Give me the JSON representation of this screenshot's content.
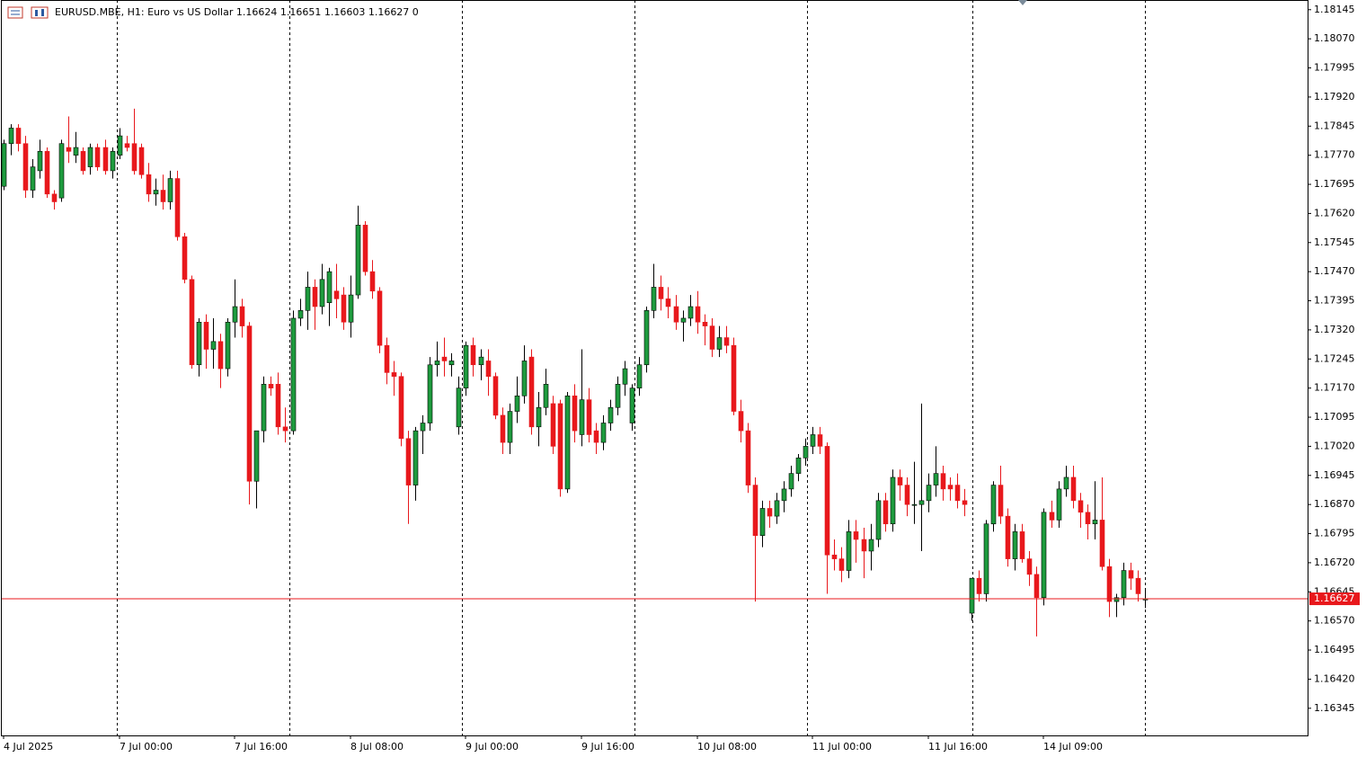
{
  "chart_data": {
    "type": "candlestick",
    "title": "EURUSD.MBE, H1:  Euro vs US Dollar  1.16624 1.16651 1.16603 1.16627  0",
    "up_color": "#1e9b3e",
    "down_color": "#e8181c",
    "price_line_color": "#e8181c",
    "current_price": 1.16627,
    "ylim": [
      1.16275,
      1.1817
    ],
    "yticks": [
      1.18145,
      {
        "value": 1.1807,
        "label": "1.18070"
      },
      1.17995,
      {
        "value": 1.1792,
        "label": "1.17920"
      },
      1.17845,
      {
        "value": 1.1777,
        "label": "1.17770"
      },
      1.17695,
      {
        "value": 1.1762,
        "label": "1.17620"
      },
      1.17545,
      {
        "value": 1.1747,
        "label": "1.17470"
      },
      1.17395,
      {
        "value": 1.1732,
        "label": "1.17320"
      },
      1.17245,
      {
        "value": 1.1717,
        "label": "1.17170"
      },
      1.17095,
      {
        "value": 1.1702,
        "label": "1.17020"
      },
      1.16945,
      {
        "value": 1.1687,
        "label": "1.16870"
      },
      1.16795,
      {
        "value": 1.1672,
        "label": "1.16720"
      },
      1.16645,
      {
        "value": 1.1657,
        "label": "1.16570"
      },
      1.16495,
      {
        "value": 1.1642,
        "label": "1.16420"
      },
      1.16345
    ],
    "categories": [
      "4 Jul 2025",
      null,
      null,
      null,
      null,
      null,
      null,
      null,
      null,
      null,
      null,
      null,
      null,
      null,
      null,
      null,
      "7 Jul 00:00",
      null,
      null,
      null,
      null,
      null,
      null,
      null,
      null,
      null,
      null,
      null,
      null,
      null,
      null,
      null,
      "7 Jul 16:00",
      null,
      null,
      null,
      null,
      null,
      null,
      null,
      null,
      null,
      null,
      null,
      null,
      null,
      null,
      null,
      "8 Jul 08:00",
      null,
      null,
      null,
      null,
      null,
      null,
      null,
      null,
      null,
      null,
      null,
      null,
      null,
      null,
      null,
      "9 Jul 00:00",
      null,
      null,
      null,
      null,
      null,
      null,
      null,
      null,
      null,
      null,
      null,
      null,
      null,
      null,
      null,
      "9 Jul 16:00",
      null,
      null,
      null,
      null,
      null,
      null,
      null,
      null,
      null,
      null,
      null,
      null,
      null,
      null,
      null,
      "10 Jul 08:00",
      null,
      null,
      null,
      null,
      null,
      null,
      null,
      null,
      null,
      null,
      null,
      null,
      null,
      null,
      null,
      "11 Jul 00:00",
      null,
      null,
      null,
      null,
      null,
      null,
      null,
      null,
      null,
      null,
      null,
      null,
      null,
      null,
      null,
      "11 Jul 16:00",
      null,
      null,
      null,
      null,
      null,
      null,
      null,
      null,
      null,
      null,
      null,
      null,
      null,
      null,
      null,
      "14 Jul 09:00",
      null,
      null,
      null,
      null,
      null,
      null,
      null,
      null,
      null,
      null,
      null,
      null,
      null,
      null
    ],
    "ohlc": [
      [
        1.1769,
        1.1781,
        1.1768,
        1.178
      ],
      [
        1.178,
        1.1785,
        1.1777,
        1.1784
      ],
      [
        1.1784,
        1.1785,
        1.1778,
        1.178
      ],
      [
        1.178,
        1.1782,
        1.1766,
        1.1768
      ],
      [
        1.1768,
        1.1776,
        1.1766,
        1.1774
      ],
      [
        1.1773,
        1.1781,
        1.1771,
        1.1778
      ],
      [
        1.1778,
        1.1779,
        1.1766,
        1.1767
      ],
      [
        1.1767,
        1.1768,
        1.1763,
        1.1765
      ],
      [
        1.1766,
        1.1781,
        1.1765,
        1.178
      ],
      [
        1.1779,
        1.1787,
        1.1775,
        1.1778
      ],
      [
        1.1777,
        1.1783,
        1.1775,
        1.1779
      ],
      [
        1.1778,
        1.1779,
        1.1772,
        1.1773
      ],
      [
        1.1774,
        1.178,
        1.1772,
        1.1779
      ],
      [
        1.1779,
        1.178,
        1.1773,
        1.1774
      ],
      [
        1.1779,
        1.1781,
        1.1772,
        1.1773
      ],
      [
        1.1773,
        1.1779,
        1.1771,
        1.1778
      ],
      [
        1.1777,
        1.1784,
        1.1776,
        1.1782
      ],
      [
        1.178,
        1.1782,
        1.1778,
        1.1779
      ],
      [
        1.178,
        1.1789,
        1.1772,
        1.1773
      ],
      [
        1.1779,
        1.178,
        1.1771,
        1.1772
      ],
      [
        1.1772,
        1.1775,
        1.1765,
        1.1767
      ],
      [
        1.1767,
        1.1771,
        1.1764,
        1.1768
      ],
      [
        1.1768,
        1.1772,
        1.1763,
        1.1765
      ],
      [
        1.1765,
        1.1773,
        1.1763,
        1.1771
      ],
      [
        1.1771,
        1.1773,
        1.1755,
        1.1756
      ],
      [
        1.1756,
        1.1757,
        1.1744,
        1.1745
      ],
      [
        1.1745,
        1.1746,
        1.1722,
        1.1723
      ],
      [
        1.1723,
        1.1735,
        1.172,
        1.1734
      ],
      [
        1.1734,
        1.1736,
        1.1722,
        1.1727
      ],
      [
        1.1727,
        1.1735,
        1.1722,
        1.1729
      ],
      [
        1.1729,
        1.1731,
        1.1717,
        1.1722
      ],
      [
        1.1722,
        1.1735,
        1.172,
        1.1734
      ],
      [
        1.1734,
        1.1745,
        1.173,
        1.1738
      ],
      [
        1.1738,
        1.174,
        1.173,
        1.1733
      ],
      [
        1.1733,
        1.1734,
        1.1687,
        1.1693
      ],
      [
        1.1693,
        1.1706,
        1.1686,
        1.1706
      ],
      [
        1.1706,
        1.172,
        1.1703,
        1.1718
      ],
      [
        1.1718,
        1.172,
        1.1715,
        1.1717
      ],
      [
        1.1718,
        1.1721,
        1.1705,
        1.1707
      ],
      [
        1.1707,
        1.1712,
        1.1703,
        1.1706
      ],
      [
        1.1706,
        1.1737,
        1.1705,
        1.1735
      ],
      [
        1.1735,
        1.174,
        1.1733,
        1.1737
      ],
      [
        1.1737,
        1.1747,
        1.1732,
        1.1743
      ],
      [
        1.1743,
        1.1745,
        1.1732,
        1.1738
      ],
      [
        1.1738,
        1.1749,
        1.1736,
        1.1745
      ],
      [
        1.1739,
        1.1748,
        1.1733,
        1.1747
      ],
      [
        1.1742,
        1.1749,
        1.1735,
        1.174
      ],
      [
        1.1741,
        1.1743,
        1.1732,
        1.1734
      ],
      [
        1.1734,
        1.1746,
        1.173,
        1.1741
      ],
      [
        1.1741,
        1.1764,
        1.174,
        1.1759
      ],
      [
        1.1759,
        1.176,
        1.1746,
        1.1747
      ],
      [
        1.1747,
        1.175,
        1.174,
        1.1742
      ],
      [
        1.1742,
        1.1743,
        1.1726,
        1.1728
      ],
      [
        1.1728,
        1.173,
        1.1718,
        1.1721
      ],
      [
        1.1721,
        1.1724,
        1.1715,
        1.172
      ],
      [
        1.172,
        1.1721,
        1.1702,
        1.1704
      ],
      [
        1.1704,
        1.1706,
        1.1682,
        1.1692
      ],
      [
        1.1692,
        1.1707,
        1.1688,
        1.1706
      ],
      [
        1.1706,
        1.171,
        1.17,
        1.1708
      ],
      [
        1.1708,
        1.1725,
        1.1706,
        1.1723
      ],
      [
        1.1723,
        1.1729,
        1.172,
        1.1724
      ],
      [
        1.1725,
        1.173,
        1.172,
        1.1724
      ],
      [
        1.1723,
        1.1726,
        1.172,
        1.1724
      ],
      [
        1.1707,
        1.172,
        1.1705,
        1.1717
      ],
      [
        1.1717,
        1.1729,
        1.1715,
        1.1728
      ],
      [
        1.1728,
        1.173,
        1.172,
        1.1723
      ],
      [
        1.1723,
        1.1727,
        1.1719,
        1.1725
      ],
      [
        1.1724,
        1.1727,
        1.1715,
        1.172
      ],
      [
        1.172,
        1.1721,
        1.1709,
        1.171
      ],
      [
        1.171,
        1.1712,
        1.17,
        1.1703
      ],
      [
        1.1703,
        1.1713,
        1.17,
        1.1711
      ],
      [
        1.1711,
        1.172,
        1.1708,
        1.1715
      ],
      [
        1.1715,
        1.1728,
        1.1713,
        1.1724
      ],
      [
        1.1725,
        1.1727,
        1.1705,
        1.1707
      ],
      [
        1.1707,
        1.1716,
        1.1702,
        1.1712
      ],
      [
        1.1712,
        1.1722,
        1.171,
        1.1718
      ],
      [
        1.1713,
        1.1715,
        1.17,
        1.1702
      ],
      [
        1.1713,
        1.1714,
        1.1689,
        1.1691
      ],
      [
        1.1691,
        1.1716,
        1.169,
        1.1715
      ],
      [
        1.1715,
        1.1718,
        1.1703,
        1.1706
      ],
      [
        1.1705,
        1.1727,
        1.1702,
        1.1714
      ],
      [
        1.1714,
        1.1717,
        1.1703,
        1.1705
      ],
      [
        1.1706,
        1.1708,
        1.17,
        1.1703
      ],
      [
        1.1703,
        1.171,
        1.1701,
        1.1708
      ],
      [
        1.1708,
        1.1714,
        1.1706,
        1.1712
      ],
      [
        1.1712,
        1.172,
        1.171,
        1.1718
      ],
      [
        1.1718,
        1.1724,
        1.1715,
        1.1722
      ],
      [
        1.1708,
        1.1718,
        1.1706,
        1.1717
      ],
      [
        1.1717,
        1.1725,
        1.1715,
        1.1723
      ],
      [
        1.1723,
        1.1738,
        1.1721,
        1.1737
      ],
      [
        1.1737,
        1.1749,
        1.1735,
        1.1743
      ],
      [
        1.1743,
        1.1746,
        1.1737,
        1.174
      ],
      [
        1.174,
        1.1743,
        1.1735,
        1.1738
      ],
      [
        1.1738,
        1.1741,
        1.1732,
        1.1734
      ],
      [
        1.1734,
        1.1737,
        1.1729,
        1.1735
      ],
      [
        1.1735,
        1.1741,
        1.1733,
        1.1738
      ],
      [
        1.1738,
        1.1742,
        1.1731,
        1.1734
      ],
      [
        1.1734,
        1.1736,
        1.1728,
        1.1733
      ],
      [
        1.1733,
        1.1735,
        1.1725,
        1.1727
      ],
      [
        1.1727,
        1.1733,
        1.1725,
        1.173
      ],
      [
        1.173,
        1.1733,
        1.1726,
        1.1728
      ],
      [
        1.1728,
        1.173,
        1.171,
        1.1711
      ],
      [
        1.1711,
        1.1714,
        1.1703,
        1.1706
      ],
      [
        1.1706,
        1.1708,
        1.169,
        1.1692
      ],
      [
        1.1692,
        1.1694,
        1.1662,
        1.1679
      ],
      [
        1.1679,
        1.1688,
        1.1676,
        1.1686
      ],
      [
        1.1686,
        1.1688,
        1.1681,
        1.1684
      ],
      [
        1.1684,
        1.169,
        1.1682,
        1.1688
      ],
      [
        1.1688,
        1.1693,
        1.1685,
        1.1691
      ],
      [
        1.1691,
        1.1697,
        1.1689,
        1.1695
      ],
      [
        1.1695,
        1.17,
        1.1693,
        1.1699
      ],
      [
        1.1699,
        1.1704,
        1.1697,
        1.1702
      ],
      [
        1.1702,
        1.1707,
        1.17,
        1.1705
      ],
      [
        1.1705,
        1.1707,
        1.17,
        1.1702
      ],
      [
        1.1702,
        1.1703,
        1.1664,
        1.1674
      ],
      [
        1.1674,
        1.1678,
        1.167,
        1.1673
      ],
      [
        1.1673,
        1.1676,
        1.1667,
        1.167
      ],
      [
        1.167,
        1.1683,
        1.1668,
        1.168
      ],
      [
        1.168,
        1.1683,
        1.1672,
        1.1678
      ],
      [
        1.1678,
        1.1681,
        1.1668,
        1.1675
      ],
      [
        1.1675,
        1.1682,
        1.167,
        1.1678
      ],
      [
        1.1678,
        1.169,
        1.1676,
        1.1688
      ],
      [
        1.1688,
        1.169,
        1.168,
        1.1682
      ],
      [
        1.1682,
        1.1696,
        1.168,
        1.1694
      ],
      [
        1.1694,
        1.1696,
        1.1688,
        1.1692
      ],
      [
        1.1692,
        1.1694,
        1.1684,
        1.1687
      ],
      [
        1.1687,
        1.1698,
        1.1682,
        1.1687
      ],
      [
        1.1687,
        1.1713,
        1.1675,
        1.1688
      ],
      [
        1.1688,
        1.1695,
        1.1685,
        1.1692
      ],
      [
        1.1692,
        1.1702,
        1.1689,
        1.1695
      ],
      [
        1.1695,
        1.1697,
        1.1688,
        1.1691
      ],
      [
        1.1692,
        1.1694,
        1.1688,
        1.1691
      ],
      [
        1.1692,
        1.1695,
        1.1686,
        1.1688
      ],
      [
        1.1688,
        1.1691,
        1.1684,
        1.1687
      ],
      [
        1.1659,
        1.1668,
        1.1657,
        1.1668
      ],
      [
        1.1668,
        1.167,
        1.1662,
        1.1664
      ],
      [
        1.1664,
        1.1683,
        1.1662,
        1.1682
      ],
      [
        1.1682,
        1.1693,
        1.168,
        1.1692
      ],
      [
        1.1692,
        1.1697,
        1.1682,
        1.1684
      ],
      [
        1.1684,
        1.1686,
        1.1671,
        1.1673
      ],
      [
        1.1673,
        1.1682,
        1.167,
        1.168
      ],
      [
        1.168,
        1.1682,
        1.1672,
        1.1673
      ],
      [
        1.1673,
        1.1675,
        1.1666,
        1.1669
      ],
      [
        1.1669,
        1.1671,
        1.1653,
        1.1663
      ],
      [
        1.1663,
        1.1686,
        1.1661,
        1.1685
      ],
      [
        1.1685,
        1.1688,
        1.1681,
        1.1683
      ],
      [
        1.1683,
        1.1693,
        1.1681,
        1.1691
      ],
      [
        1.1691,
        1.1697,
        1.1689,
        1.1694
      ],
      [
        1.1694,
        1.1697,
        1.1686,
        1.1688
      ],
      [
        1.1688,
        1.169,
        1.1681,
        1.1685
      ],
      [
        1.1685,
        1.1687,
        1.1678,
        1.1682
      ],
      [
        1.1682,
        1.1693,
        1.1678,
        1.1683
      ],
      [
        1.1683,
        1.1694,
        1.167,
        1.1671
      ],
      [
        1.1671,
        1.1673,
        1.1658,
        1.1662
      ],
      [
        1.1662,
        1.1664,
        1.1658,
        1.1663
      ],
      [
        1.1663,
        1.1672,
        1.1661,
        1.167
      ],
      [
        1.167,
        1.1672,
        1.1665,
        1.1668
      ],
      [
        1.1668,
        1.167,
        1.1662,
        1.1664
      ],
      [
        1.16624,
        1.16651,
        1.16603,
        1.16627
      ]
    ]
  }
}
